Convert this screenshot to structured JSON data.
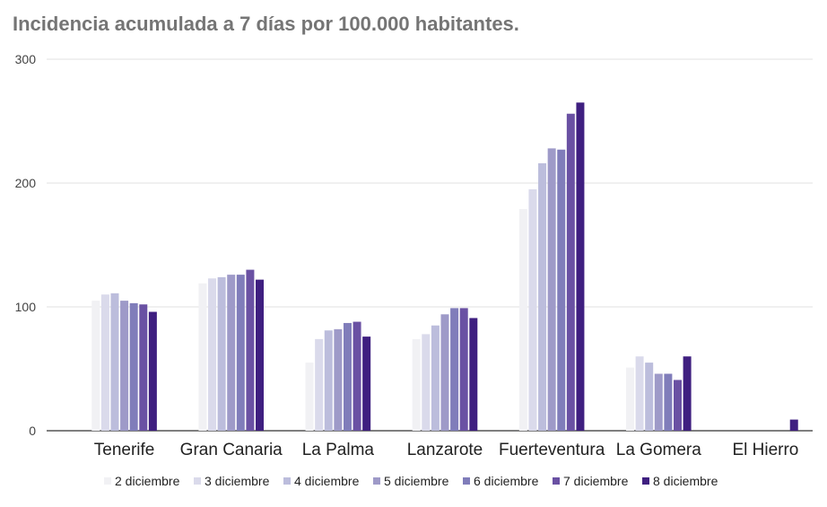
{
  "chart_data": {
    "type": "bar",
    "title": "Incidencia acumulada a 7 días por 100.000 habitantes.",
    "xlabel": "",
    "ylabel": "",
    "ylim": [
      0,
      300
    ],
    "yticks": [
      0,
      100,
      200,
      300
    ],
    "grid": true,
    "legend_position": "bottom",
    "categories": [
      "Tenerife",
      "Gran Canaria",
      "La Palma",
      "Lanzarote",
      "Fuerteventura",
      "La Gomera",
      "El Hierro"
    ],
    "series": [
      {
        "name": "2 diciembre",
        "color": "#f1f1f4",
        "values": [
          105,
          119,
          55,
          74,
          179,
          51,
          0
        ]
      },
      {
        "name": "3 diciembre",
        "color": "#dadaeb",
        "values": [
          110,
          123,
          74,
          78,
          195,
          60,
          0
        ]
      },
      {
        "name": "4 diciembre",
        "color": "#bcbddc",
        "values": [
          111,
          124,
          81,
          85,
          216,
          55,
          0
        ]
      },
      {
        "name": "5 diciembre",
        "color": "#9e9ac8",
        "values": [
          105,
          126,
          82,
          94,
          228,
          46,
          0
        ]
      },
      {
        "name": "6 diciembre",
        "color": "#807dba",
        "values": [
          103,
          126,
          87,
          99,
          227,
          46,
          0
        ]
      },
      {
        "name": "7 diciembre",
        "color": "#6a51a3",
        "values": [
          102,
          130,
          88,
          99,
          256,
          41,
          0
        ]
      },
      {
        "name": "8 diciembre",
        "color": "#3f1f80",
        "values": [
          96,
          122,
          76,
          91,
          265,
          60,
          9
        ]
      }
    ]
  }
}
